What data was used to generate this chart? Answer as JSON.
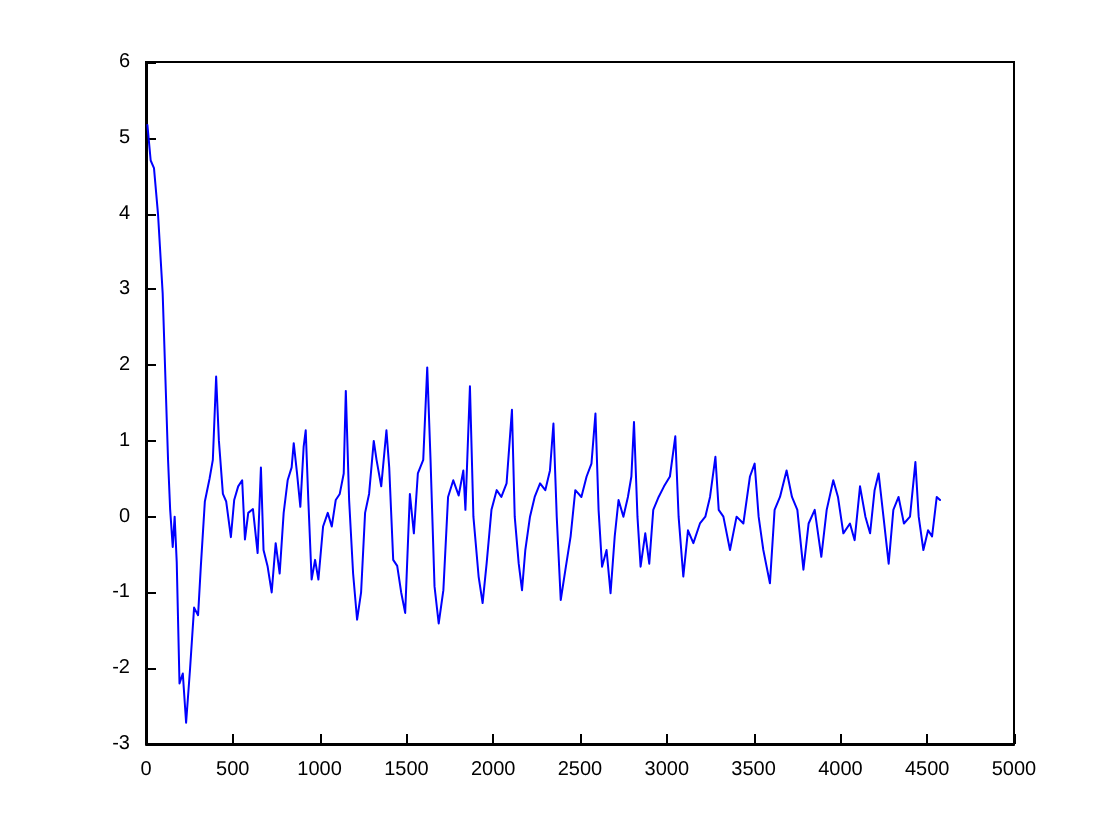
{
  "chart_data": {
    "type": "line",
    "xlim": [
      0,
      5000
    ],
    "xticks": [
      0,
      500,
      1000,
      1500,
      2000,
      2500,
      3000,
      3500,
      4000,
      4500,
      5000
    ],
    "ylim": [
      -3,
      6
    ],
    "yticks": [
      -3,
      -2,
      -1,
      0,
      1,
      2,
      3,
      4,
      5,
      6
    ],
    "grid": false,
    "marker": "none",
    "line_style": "solid",
    "series": [
      {
        "color": "#0000ff",
        "x": [
          8,
          27,
          46,
          69,
          96,
          115,
          127,
          139,
          154,
          165,
          177,
          193,
          212,
          231,
          254,
          277,
          300,
          316,
          339,
          366,
          385,
          404,
          420,
          443,
          462,
          489,
          508,
          531,
          554,
          570,
          589,
          616,
          643,
          662,
          677,
          700,
          724,
          747,
          770,
          793,
          816,
          839,
          851,
          870,
          889,
          908,
          920,
          935,
          954,
          974,
          993,
          1020,
          1047,
          1070,
          1093,
          1116,
          1139,
          1151,
          1170,
          1193,
          1216,
          1239,
          1262,
          1285,
          1312,
          1328,
          1355,
          1385,
          1401,
          1424,
          1447,
          1470,
          1493,
          1520,
          1543,
          1566,
          1597,
          1620,
          1639,
          1662,
          1686,
          1713,
          1740,
          1770,
          1801,
          1828,
          1840,
          1866,
          1886,
          1916,
          1939,
          1962,
          1990,
          2020,
          2047,
          2077,
          2108,
          2124,
          2147,
          2166,
          2185,
          2212,
          2239,
          2270,
          2300,
          2327,
          2347,
          2366,
          2389,
          2416,
          2446,
          2473,
          2508,
          2538,
          2566,
          2589,
          2607,
          2627,
          2653,
          2676,
          2700,
          2722,
          2750,
          2776,
          2796,
          2811,
          2831,
          2849,
          2876,
          2899,
          2922,
          2953,
          2984,
          3018,
          3049,
          3068,
          3095,
          3122,
          3153,
          3191,
          3222,
          3249,
          3280,
          3299,
          3326,
          3364,
          3402,
          3441,
          3479,
          3506,
          3529,
          3556,
          3594,
          3621,
          3652,
          3690,
          3721,
          3752,
          3787,
          3817,
          3852,
          3890,
          3921,
          3959,
          3986,
          4017,
          4055,
          4082,
          4113,
          4144,
          4171,
          4197,
          4220,
          4248,
          4278,
          4305,
          4335,
          4366,
          4401,
          4432,
          4451,
          4478,
          4505,
          4528,
          4555,
          4574
        ],
        "values": [
          5.17,
          4.7,
          4.6,
          4.0,
          2.95,
          1.6,
          0.75,
          0.1,
          -0.4,
          0,
          -0.6,
          -2.2,
          -2.07,
          -2.72,
          -2.0,
          -1.2,
          -1.3,
          -0.65,
          0.2,
          0.5,
          0.75,
          1.85,
          1.0,
          0.3,
          0.2,
          -0.27,
          0.22,
          0.4,
          0.48,
          -0.3,
          0.05,
          0.1,
          -0.48,
          0.65,
          -0.44,
          -0.65,
          -1.0,
          -0.35,
          -0.75,
          0.05,
          0.48,
          0.65,
          0.97,
          0.57,
          0.13,
          0.92,
          1.14,
          0.22,
          -0.83,
          -0.57,
          -0.83,
          -0.13,
          0.05,
          -0.13,
          0.22,
          0.3,
          0.57,
          1.66,
          0.22,
          -0.75,
          -1.36,
          -1.0,
          0.05,
          0.3,
          1.0,
          0.75,
          0.4,
          1.14,
          0.65,
          -0.57,
          -0.65,
          -1.0,
          -1.27,
          0.3,
          -0.22,
          0.57,
          0.75,
          1.97,
          0.75,
          -0.92,
          -1.41,
          -0.97,
          0.26,
          0.48,
          0.28,
          0.61,
          0.09,
          1.72,
          0,
          -0.79,
          -1.14,
          -0.62,
          0.09,
          0.35,
          0.26,
          0.44,
          1.41,
          0,
          -0.62,
          -0.97,
          -0.44,
          0,
          0.26,
          0.44,
          0.35,
          0.61,
          1.23,
          0,
          -1.1,
          -0.7,
          -0.26,
          0.35,
          0.26,
          0.53,
          0.7,
          1.36,
          0.09,
          -0.66,
          -0.44,
          -1.01,
          -0.26,
          0.22,
          0,
          0.26,
          0.53,
          1.25,
          0,
          -0.66,
          -0.22,
          -0.62,
          0.09,
          0.26,
          0.4,
          0.53,
          1.06,
          0,
          -0.79,
          -0.18,
          -0.35,
          -0.09,
          0,
          0.26,
          0.79,
          0.09,
          0,
          -0.44,
          0,
          -0.09,
          0.53,
          0.7,
          0,
          -0.44,
          -0.88,
          0.09,
          0.26,
          0.61,
          0.26,
          0.09,
          -0.7,
          -0.09,
          0.09,
          -0.53,
          0.09,
          0.48,
          0.26,
          -0.22,
          -0.09,
          -0.31,
          0.4,
          0,
          -0.22,
          0.35,
          0.57,
          0,
          -0.62,
          0.09,
          0.26,
          -0.09,
          0,
          0.72,
          0,
          -0.44,
          -0.18,
          -0.26,
          0.26,
          0.22
        ]
      }
    ]
  }
}
